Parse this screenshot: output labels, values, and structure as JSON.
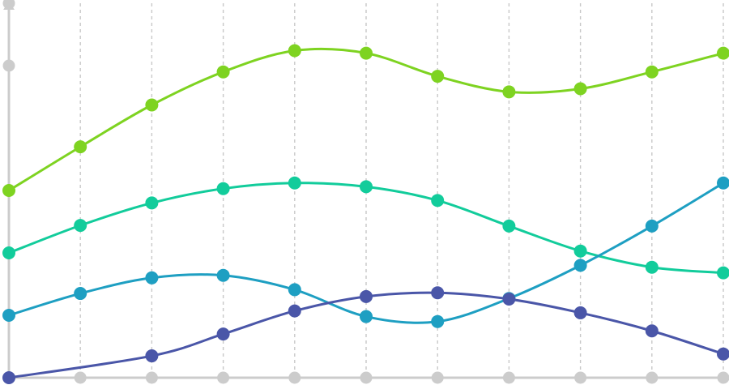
{
  "chart_data": {
    "type": "line",
    "smooth": true,
    "markers": "circle",
    "grid": {
      "vertical": true,
      "horizontal": false,
      "style": "dashed"
    },
    "axes": {
      "x_ticks": "dots",
      "y_ticks": "dots",
      "tick_labels": false,
      "y_axis_arrow": true
    },
    "x": [
      0,
      1,
      2,
      3,
      4,
      5,
      6,
      7,
      8,
      9,
      10
    ],
    "ylim": [
      0,
      6
    ],
    "y_ticks": [
      5,
      6
    ],
    "series": [
      {
        "color": "#7ed321",
        "values": [
          3.0,
          3.7,
          4.37,
          4.9,
          5.24,
          5.2,
          4.83,
          4.58,
          4.63,
          4.9,
          5.2
        ]
      },
      {
        "color": "#12cc9b",
        "values": [
          2.0,
          2.44,
          2.8,
          3.03,
          3.12,
          3.06,
          2.84,
          2.43,
          2.03,
          1.77,
          1.68
        ]
      },
      {
        "color": "#1e9fc2",
        "values": [
          1.0,
          1.35,
          1.6,
          1.64,
          1.41,
          0.98,
          0.9,
          1.27,
          1.8,
          2.43,
          3.12
        ]
      },
      {
        "color": "#4a56a8",
        "values": [
          0.0,
          null,
          0.35,
          0.7,
          1.07,
          1.3,
          1.36,
          1.26,
          1.04,
          0.75,
          0.38
        ]
      }
    ]
  }
}
